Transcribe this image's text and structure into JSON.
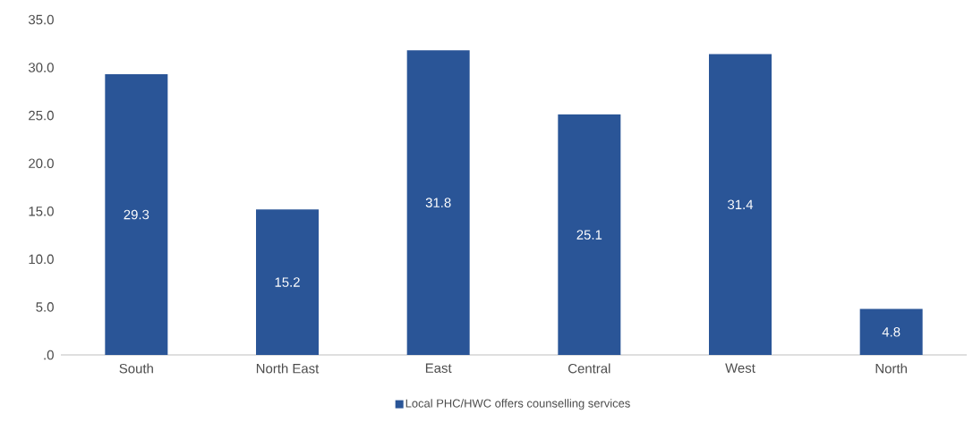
{
  "chart_data": {
    "type": "bar",
    "categories": [
      "South",
      "North East",
      "East",
      "Central",
      "West",
      "North"
    ],
    "series": [
      {
        "name": "Local PHC/HWC offers counselling services",
        "color": "#2a5597",
        "values": [
          29.3,
          15.2,
          31.8,
          25.1,
          31.4,
          4.8
        ]
      }
    ],
    "ylim": [
      0,
      35
    ],
    "yticks": [
      {
        "value": 0,
        "label": ".0"
      },
      {
        "value": 5,
        "label": "5.0"
      },
      {
        "value": 10,
        "label": "10.0"
      },
      {
        "value": 15,
        "label": "15.0"
      },
      {
        "value": 20,
        "label": "20.0"
      },
      {
        "value": 25,
        "label": "25.0"
      },
      {
        "value": 30,
        "label": "30.0"
      },
      {
        "value": 35,
        "label": "35.0"
      }
    ],
    "data_labels": true,
    "legend": "bottom",
    "grid": false
  }
}
